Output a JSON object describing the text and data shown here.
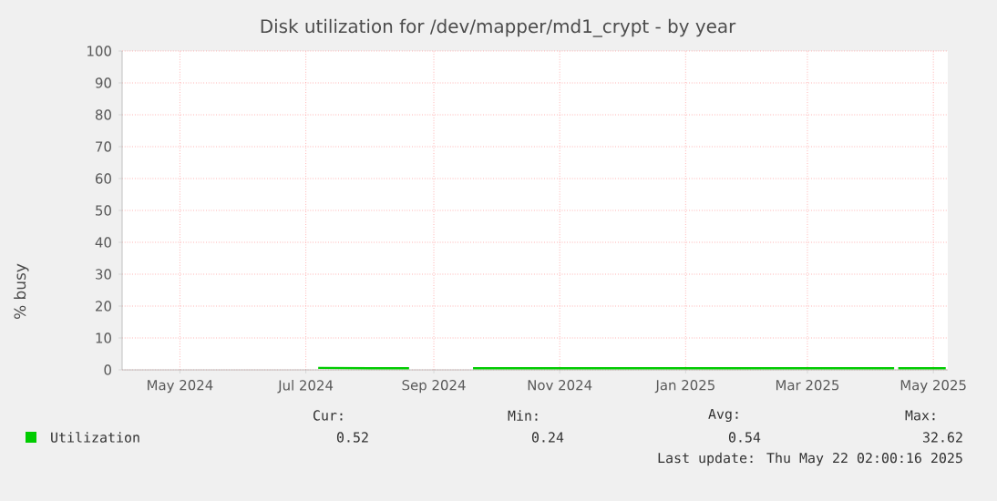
{
  "chart_data": {
    "type": "line",
    "title": "Disk utilization for /dev/mapper/md1_crypt - by year",
    "ylabel": "% busy",
    "xlim": [
      "2024-04-17",
      "2025-05-22"
    ],
    "ylim": [
      0,
      100
    ],
    "yticks": [
      0,
      10,
      20,
      30,
      40,
      50,
      60,
      70,
      80,
      90,
      100
    ],
    "xticks": [
      {
        "value": "2024-05-15",
        "label": "May 2024"
      },
      {
        "value": "2024-07-15",
        "label": "Jul 2024"
      },
      {
        "value": "2024-09-15",
        "label": "Sep 2024"
      },
      {
        "value": "2024-11-15",
        "label": "Nov 2024"
      },
      {
        "value": "2025-01-15",
        "label": "Jan 2025"
      },
      {
        "value": "2025-03-15",
        "label": "Mar 2025"
      },
      {
        "value": "2025-05-15",
        "label": "May 2025"
      }
    ],
    "grid": true,
    "legend": "bottom left",
    "series": [
      {
        "name": "Utilization",
        "color": "#00cc00",
        "x": [
          "2024-07-21",
          "2024-08-15",
          "2024-09-03",
          "2024-09-20",
          "2024-10-04",
          "2025-01-01",
          "2025-04-26",
          "2025-04-27",
          "2025-04-28",
          "2025-05-21"
        ],
        "values": [
          0.6,
          0.5,
          0.5,
          null,
          0.5,
          0.5,
          0.5,
          null,
          0.5,
          0.5
        ]
      }
    ],
    "annotations": [
      "Cur:",
      "Min:",
      "Avg:",
      "Max:",
      "0.52",
      "0.24",
      "0.54",
      "32.62",
      "Last update: Thu May 22 02:00:16 2025"
    ]
  }
}
